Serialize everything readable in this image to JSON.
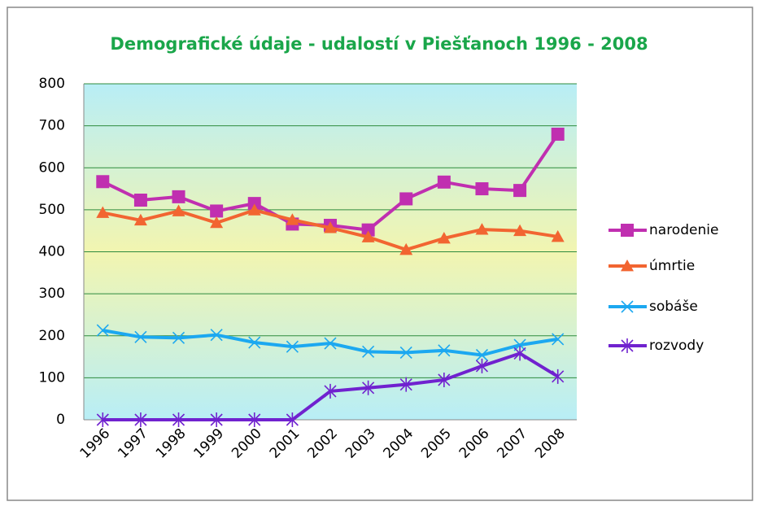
{
  "chart_data": {
    "type": "line",
    "title": "Demografické údaje - udalostí v Piešťanoch 1996 - 2008",
    "categories": [
      "1996",
      "1997",
      "1998",
      "1999",
      "2000",
      "2001",
      "2002",
      "2003",
      "2004",
      "2005",
      "2006",
      "2007",
      "2008"
    ],
    "series": [
      {
        "name": "narodenie",
        "color": "#c02fb0",
        "marker": "square",
        "values": [
          567,
          523,
          531,
          497,
          515,
          466,
          463,
          452,
          526,
          566,
          550,
          546,
          680
        ]
      },
      {
        "name": "úmrtie",
        "color": "#f26531",
        "marker": "triangle",
        "values": [
          493,
          475,
          497,
          469,
          499,
          476,
          457,
          435,
          405,
          432,
          453,
          450,
          436
        ]
      },
      {
        "name": "sobáše",
        "color": "#1ca8f0",
        "marker": "x",
        "values": [
          213,
          197,
          195,
          202,
          184,
          174,
          182,
          162,
          160,
          165,
          154,
          178,
          192
        ]
      },
      {
        "name": "rozvody",
        "color": "#7022cf",
        "marker": "asterisk",
        "values": [
          0,
          0,
          0,
          0,
          0,
          0,
          68,
          76,
          84,
          95,
          128,
          158,
          103
        ]
      }
    ],
    "ylim": [
      0,
      800
    ],
    "yticks": [
      0,
      100,
      200,
      300,
      400,
      500,
      600,
      700,
      800
    ],
    "grid": true,
    "legend": "right"
  }
}
